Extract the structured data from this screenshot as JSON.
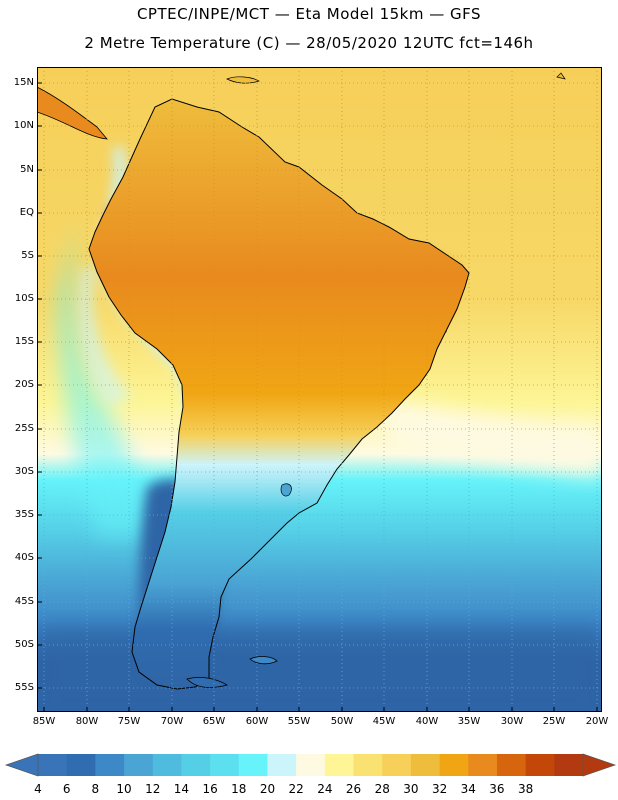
{
  "title_line1": "CPTEC/INPE/MCT —  Eta Model 15km — GFS",
  "title_line2": "2 Metre Temperature (C) — 28/05/2020 12UTC fct=146h",
  "lat_labels": [
    "15N",
    "10N",
    "5N",
    "EQ",
    "5S",
    "10S",
    "15S",
    "20S",
    "25S",
    "30S",
    "35S",
    "40S",
    "45S",
    "50S",
    "55S"
  ],
  "lon_labels": [
    "85W",
    "80W",
    "75W",
    "70W",
    "65W",
    "60W",
    "55W",
    "50W",
    "45W",
    "40W",
    "35W",
    "30W",
    "25W",
    "20W"
  ],
  "colorbar": {
    "labels": [
      "4",
      "6",
      "8",
      "10",
      "12",
      "14",
      "16",
      "18",
      "20",
      "22",
      "24",
      "26",
      "28",
      "30",
      "32",
      "34",
      "36",
      "38"
    ],
    "colors": [
      "#3a74b8",
      "#2f6cb0",
      "#3d88c6",
      "#4aa4d4",
      "#4fbbdf",
      "#55cfe6",
      "#5ce0ef",
      "#66f3fa",
      "#ccf4fb",
      "#fefae2",
      "#fdf596",
      "#f9e271",
      "#f6d059",
      "#efbd3c",
      "#f0a614",
      "#e88a1e",
      "#d7650d",
      "#c4470a",
      "#b33a10"
    ],
    "under_color": "#3a74b8",
    "over_color": "#b33a10"
  },
  "regions": {
    "ocean_north": "#f6cf59",
    "ocean_south_far": "#2f65a6",
    "ocean_south_mid": "#4aa4d4",
    "ocean_cold_coast": "#66f3fa",
    "amazon_hot": "#d7650d",
    "brazil_warm": "#efbd3c",
    "andes_cold": "#ccf4fb",
    "patagonia": "#2f65a6",
    "pampas": "#55cfe6"
  }
}
